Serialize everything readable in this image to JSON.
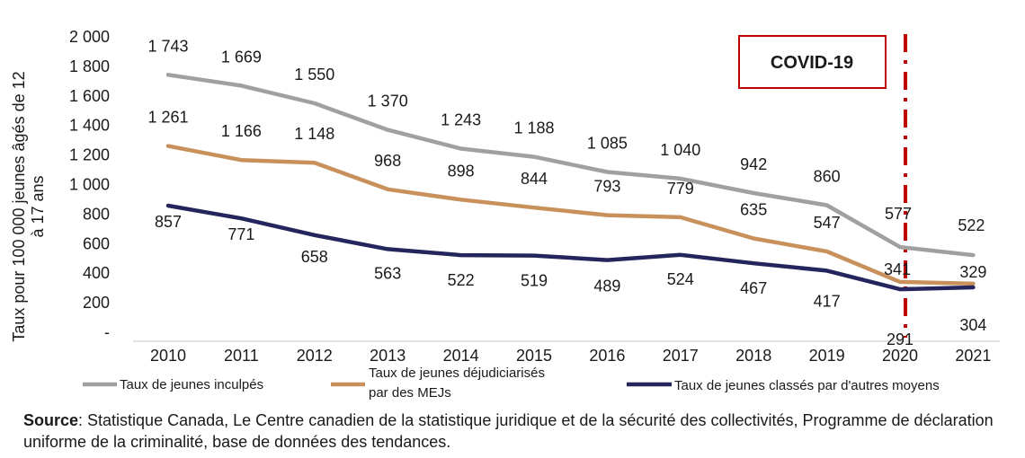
{
  "chart_data": {
    "type": "line",
    "x": [
      "2010",
      "2011",
      "2012",
      "2013",
      "2014",
      "2015",
      "2016",
      "2017",
      "2018",
      "2019",
      "2020",
      "2021"
    ],
    "ylabel_lines": [
      "Taux pour 100 000 jeunes âgés de 12",
      "à 17 ans"
    ],
    "ylim": [
      0,
      2000
    ],
    "yticks": [
      {
        "value": 0,
        "label": "-"
      },
      {
        "value": 200,
        "label": "200"
      },
      {
        "value": 400,
        "label": "400"
      },
      {
        "value": 600,
        "label": "600"
      },
      {
        "value": 800,
        "label": "800"
      },
      {
        "value": 1000,
        "label": "1 000"
      },
      {
        "value": 1200,
        "label": "1 200"
      },
      {
        "value": 1400,
        "label": "1 400"
      },
      {
        "value": 1600,
        "label": "1 600"
      },
      {
        "value": 1800,
        "label": "1 800"
      },
      {
        "value": 2000,
        "label": "2 000"
      }
    ],
    "grid": false,
    "series": [
      {
        "name_lines": [
          "Taux de jeunes inculpés"
        ],
        "color": "#a0a0a0",
        "values": [
          1743,
          1669,
          1550,
          1370,
          1243,
          1188,
          1085,
          1040,
          942,
          860,
          577,
          522
        ],
        "labels": [
          "1 743",
          "1 669",
          "1 550",
          "1 370",
          "1 243",
          "1 188",
          "1 085",
          "1 040",
          "942",
          "860",
          "577",
          "522"
        ]
      },
      {
        "name_lines": [
          "Taux de jeunes déjudiciarisés",
          "par des MEJs"
        ],
        "color": "#c8915b",
        "values": [
          1261,
          1166,
          1148,
          968,
          898,
          844,
          793,
          779,
          635,
          547,
          341,
          329
        ],
        "labels": [
          "1 261",
          "1 166",
          "1 148",
          "968",
          "898",
          "844",
          "793",
          "779",
          "635",
          "547",
          "341",
          "329"
        ]
      },
      {
        "name_lines": [
          "Taux de jeunes classés par d'autres moyens"
        ],
        "color": "#23255c",
        "values": [
          857,
          771,
          658,
          563,
          522,
          519,
          489,
          524,
          467,
          417,
          291,
          304
        ],
        "labels": [
          "857",
          "771",
          "658",
          "563",
          "522",
          "519",
          "489",
          "524",
          "467",
          "417",
          "291",
          "304"
        ]
      }
    ],
    "annotation": {
      "text": "COVID-19",
      "at_x": "2020",
      "line_color": "#c00000"
    }
  },
  "source": {
    "label": "Source",
    "text": ": Statistique Canada, Le Centre canadien de la statistique juridique et de la sécurité des collectivités, Programme de déclaration uniforme de la criminalité, base de données des tendances."
  }
}
